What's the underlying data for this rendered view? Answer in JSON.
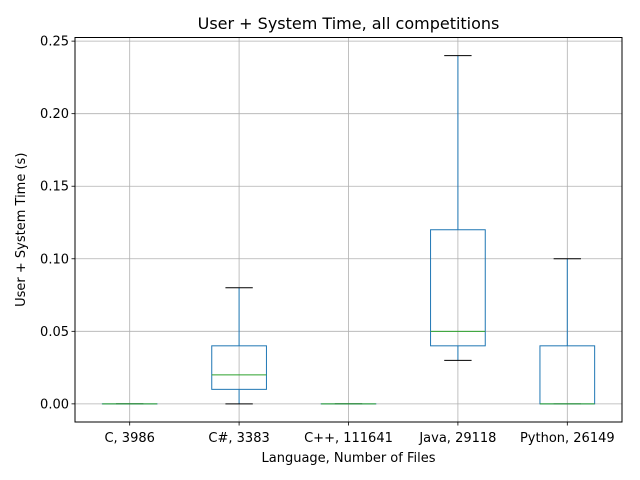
{
  "chart_data": {
    "type": "box",
    "title": "User + System Time, all competitions",
    "xlabel": "Language, Number of Files",
    "ylabel": "User + System Time (s)",
    "ylim": [
      -0.0125,
      0.2525
    ],
    "grid": true,
    "yticks": [
      0.0,
      0.05,
      0.1,
      0.15,
      0.2,
      0.25
    ],
    "ytick_labels": [
      "0.00",
      "0.05",
      "0.10",
      "0.15",
      "0.20",
      "0.25"
    ],
    "categories": [
      "C, 3986",
      "C#, 3383",
      "C++, 111641",
      "Java, 29118",
      "Python, 26149"
    ],
    "boxes": [
      {
        "whislo": 0.0,
        "q1": 0.0,
        "med": 0.0,
        "q3": 0.0,
        "whishi": 0.0
      },
      {
        "whislo": 0.0,
        "q1": 0.01,
        "med": 0.02,
        "q3": 0.04,
        "whishi": 0.08
      },
      {
        "whislo": 0.0,
        "q1": 0.0,
        "med": 0.0,
        "q3": 0.0,
        "whishi": 0.0
      },
      {
        "whislo": 0.03,
        "q1": 0.04,
        "med": 0.05,
        "q3": 0.12,
        "whishi": 0.24
      },
      {
        "whislo": 0.0,
        "q1": 0.0,
        "med": 0.0,
        "q3": 0.04,
        "whishi": 0.1
      }
    ],
    "colors": {
      "box": "#1f77b4",
      "median": "#2ca02c",
      "cap": "#000000",
      "grid": "#b0b0b0",
      "axis": "#000000"
    }
  }
}
